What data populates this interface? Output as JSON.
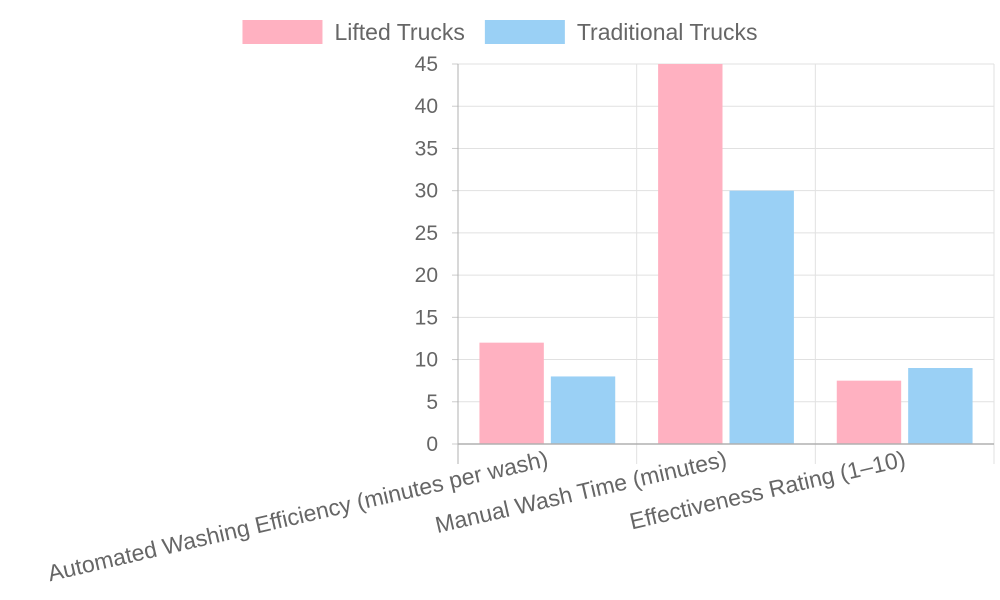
{
  "chart_data": {
    "type": "bar",
    "categories": [
      "Automated Washing Efficiency (minutes per wash)",
      "Manual Wash Time (minutes)",
      "Effectiveness Rating (1–10)"
    ],
    "series": [
      {
        "name": "Lifted Trucks",
        "values": [
          12,
          45,
          7.5
        ],
        "color": "#ffb1c1",
        "border": "#ff9db3"
      },
      {
        "name": "Traditional Trucks",
        "values": [
          8,
          30,
          9
        ],
        "color": "#9ad0f5",
        "border": "#7cc0ee"
      }
    ],
    "yticks": [
      "0",
      "5",
      "10",
      "15",
      "20",
      "25",
      "30",
      "35",
      "40",
      "45"
    ],
    "ylim": [
      0,
      45
    ],
    "grid": true,
    "legend_position": "top"
  }
}
